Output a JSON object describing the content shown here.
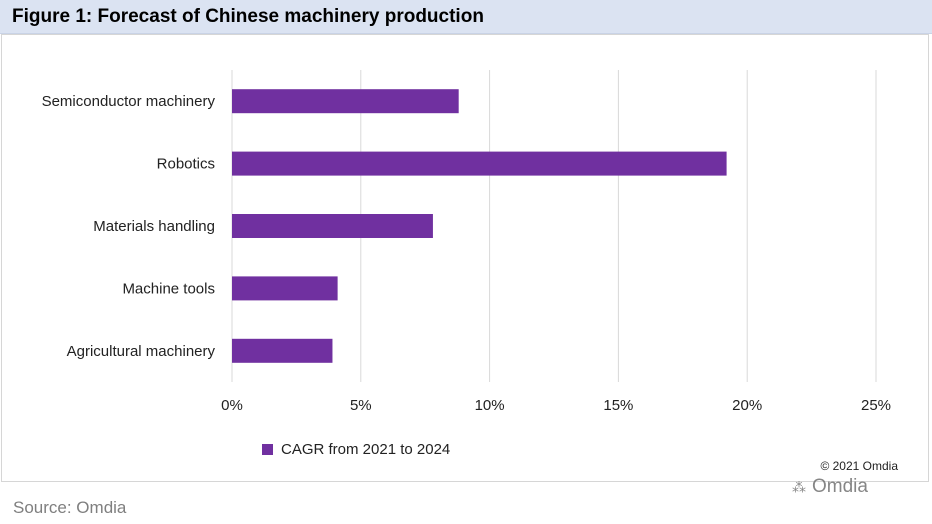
{
  "title": "Figure 1: Forecast of Chinese machinery production",
  "legend_label": "CAGR from 2021 to 2024",
  "copyright": "© 2021 Omdia",
  "watermark": "Omdia",
  "source": "Source: Omdia",
  "colors": {
    "bar": "#7030a0",
    "title_bg": "#dbe3f2",
    "grid": "#d9d9d9"
  },
  "chart_data": {
    "type": "bar",
    "orientation": "horizontal",
    "categories": [
      "Semiconductor machinery",
      "Robotics",
      "Materials handling",
      "Machine tools",
      "Agricultural machinery"
    ],
    "series": [
      {
        "name": "CAGR from 2021 to 2024",
        "values": [
          8.8,
          19.2,
          7.8,
          4.1,
          3.9
        ]
      }
    ],
    "xlim": [
      0,
      25
    ],
    "xticks": [
      0,
      5,
      10,
      15,
      20,
      25
    ],
    "xtick_labels": [
      "0%",
      "5%",
      "10%",
      "15%",
      "20%",
      "25%"
    ],
    "grid": true,
    "legend_position": "bottom"
  }
}
